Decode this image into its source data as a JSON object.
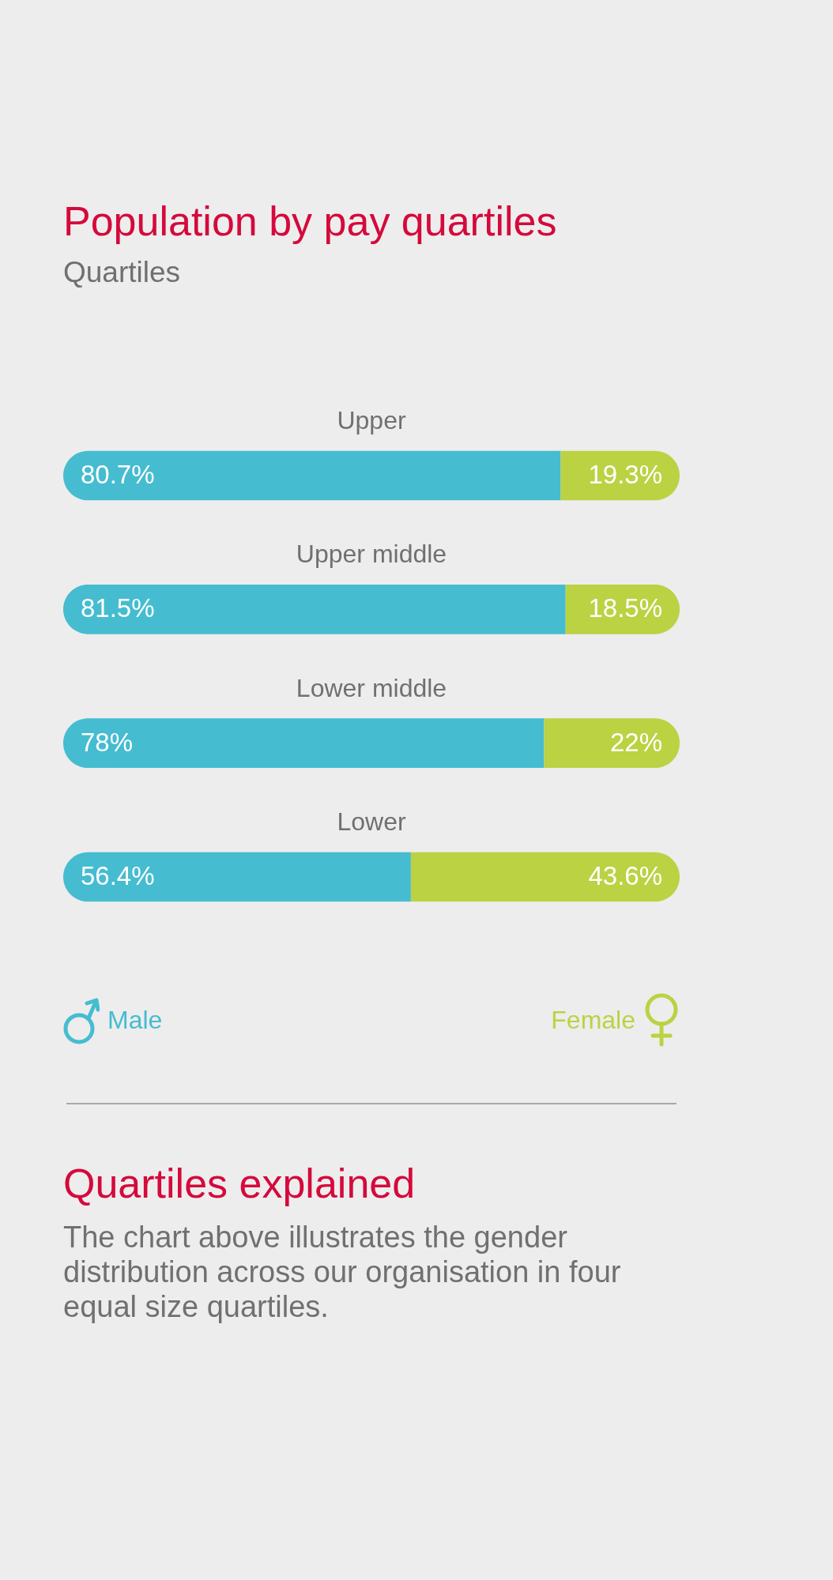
{
  "chart_data": {
    "type": "bar",
    "orientation": "horizontal",
    "stacked": true,
    "title": "Population by pay quartiles",
    "subtitle": "Quartiles",
    "categories": [
      "Upper",
      "Upper middle",
      "Lower middle",
      "Lower"
    ],
    "series": [
      {
        "name": "Male",
        "color": "#46bcd0",
        "values": [
          80.7,
          81.5,
          78,
          56.4
        ],
        "value_labels": [
          "80.7%",
          "81.5%",
          "78%",
          "56.4%"
        ]
      },
      {
        "name": "Female",
        "color": "#bbd243",
        "values": [
          19.3,
          18.5,
          22,
          43.6
        ],
        "value_labels": [
          "19.3%",
          "18.5%",
          "22%",
          "43.6%"
        ]
      }
    ],
    "xlim": [
      0,
      100
    ],
    "tick_labels": false,
    "grid": false,
    "legend": "bottom",
    "annotations": [
      "Quartiles explained",
      "The chart above illustrates the gender distribution across our organisation in four equal size quartiles."
    ]
  }
}
